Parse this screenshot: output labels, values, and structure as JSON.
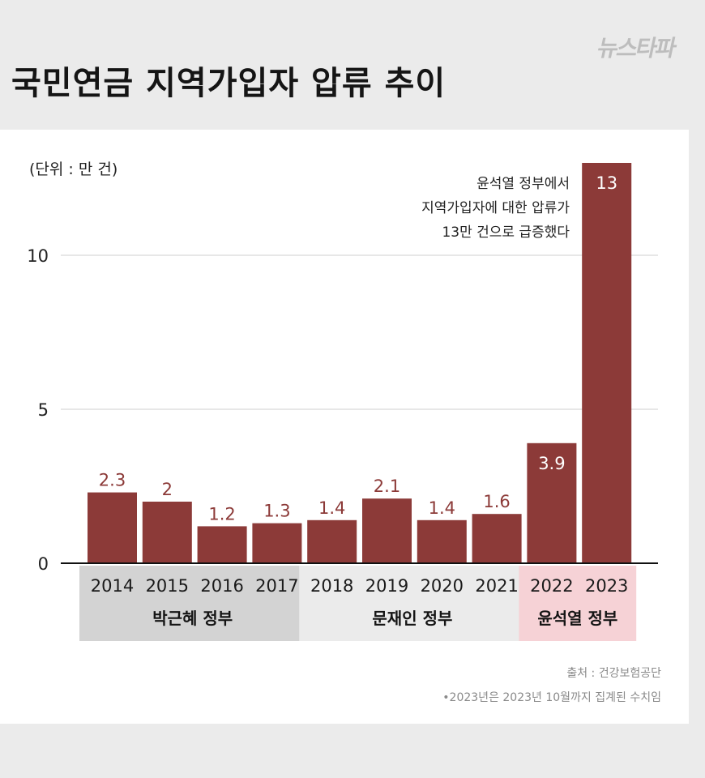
{
  "title": "국민연금 지역가입자 압류 추이",
  "logo_text": "뉴스타파",
  "source": "출처 : 건강보험공단",
  "note": "•2023년은 2023년 10월까지 집계된 수치임",
  "colors": {
    "bar": "#8c3a38",
    "bar_label_outside": "#8c3a38",
    "bar_label_inside": "#ffffff",
    "group_park": "#d3d3d3",
    "group_moon": "#ebebeb",
    "group_yoon": "#f6d2d6",
    "grid": "#cfcfcf",
    "axis": "#111111"
  },
  "chart_data": {
    "type": "bar",
    "unit_label": "(단위 : 만 건)",
    "categories": [
      "2014",
      "2015",
      "2016",
      "2017",
      "2018",
      "2019",
      "2020",
      "2021",
      "2022",
      "2023"
    ],
    "values": [
      2.3,
      2,
      1.2,
      1.3,
      1.4,
      2.1,
      1.4,
      1.6,
      3.9,
      13
    ],
    "value_labels": [
      "2.3",
      "2",
      "1.2",
      "1.3",
      "1.4",
      "2.1",
      "1.4",
      "1.6",
      "3.9",
      "13"
    ],
    "ylim": [
      0,
      13
    ],
    "yticks": [
      0,
      5,
      10
    ],
    "grid": true,
    "annotation": [
      "윤석열 정부에서",
      "지역가입자에 대한 압류가",
      "13만 건으로 급증했다"
    ],
    "groups": [
      {
        "label": "박근혜 정부",
        "start": 0,
        "end": 3,
        "color_key": "group_park"
      },
      {
        "label": "문재인 정부",
        "start": 4,
        "end": 7,
        "color_key": "group_moon"
      },
      {
        "label": "윤석열 정부",
        "start": 8,
        "end": 9,
        "color_key": "group_yoon"
      }
    ]
  }
}
